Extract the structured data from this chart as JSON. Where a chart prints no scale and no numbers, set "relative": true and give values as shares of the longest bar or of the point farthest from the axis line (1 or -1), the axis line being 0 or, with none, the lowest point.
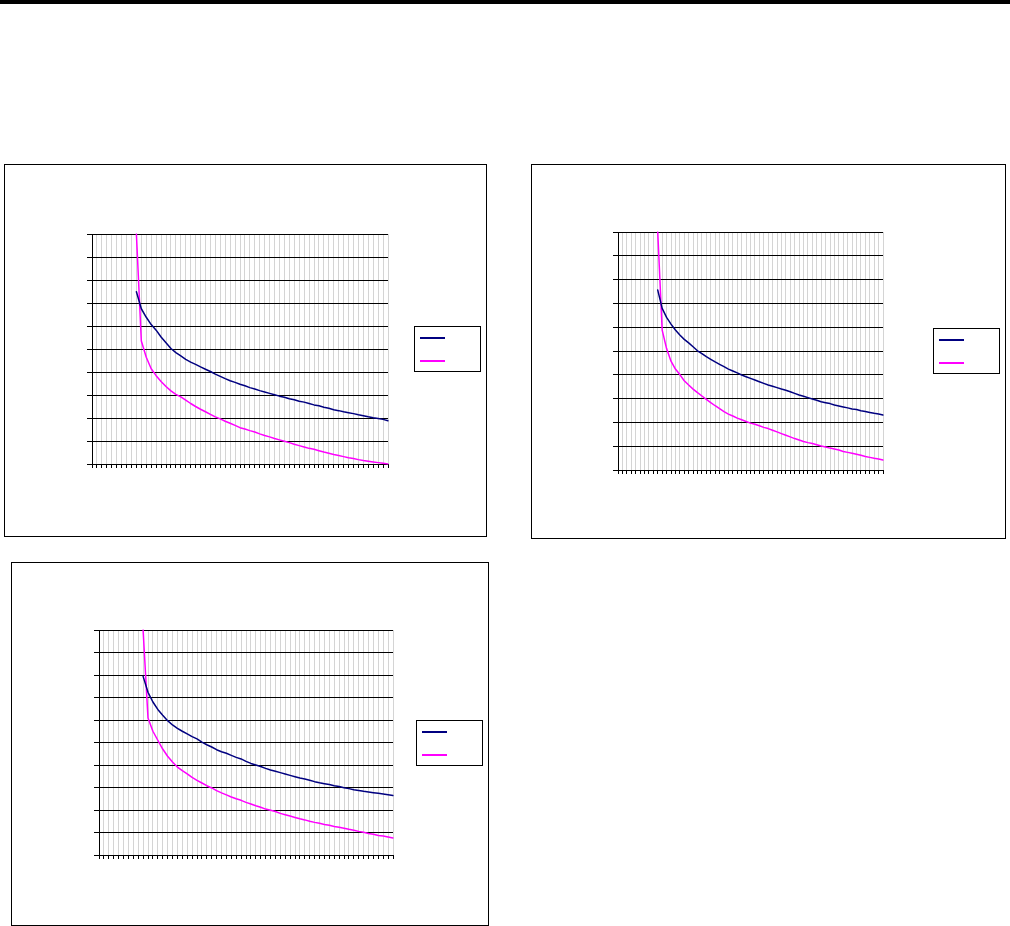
{
  "chart_data": [
    {
      "type": "line",
      "relative": true,
      "grid": true,
      "categories": [
        null,
        null,
        null,
        null,
        null,
        null,
        null,
        null,
        null,
        null,
        null,
        null,
        null,
        null,
        null,
        null,
        null,
        null,
        null,
        null,
        null,
        null,
        null,
        null,
        null,
        null,
        null,
        null,
        null,
        null,
        null,
        null,
        null,
        null,
        null,
        null,
        null,
        null,
        null,
        null,
        null,
        null,
        null,
        null,
        null,
        null,
        null,
        null,
        null,
        null,
        null,
        null,
        null,
        null,
        null,
        null,
        null,
        null,
        null,
        null,
        null
      ],
      "series": [
        {
          "color": "#000080",
          "values": [
            null,
            null,
            null,
            null,
            null,
            null,
            null,
            null,
            null,
            0.749,
            0.675,
            0.638,
            0.606,
            0.582,
            0.552,
            0.527,
            0.502,
            0.484,
            0.47,
            0.455,
            0.443,
            0.433,
            0.422,
            0.412,
            0.402,
            0.391,
            0.381,
            0.371,
            0.362,
            0.355,
            0.347,
            0.34,
            0.332,
            0.326,
            0.319,
            0.313,
            0.307,
            0.301,
            0.295,
            0.29,
            0.284,
            0.279,
            0.273,
            0.269,
            0.263,
            0.257,
            0.253,
            0.247,
            0.242,
            0.236,
            0.232,
            0.227,
            0.223,
            0.219,
            0.214,
            0.21,
            0.205,
            0.201,
            0.198,
            0.194,
            0.188
          ]
        },
        {
          "color": "#ff00ff",
          "values": [
            null,
            null,
            null,
            null,
            null,
            null,
            null,
            null,
            null,
            1,
            0.535,
            0.464,
            0.414,
            0.384,
            0.359,
            0.337,
            0.318,
            0.303,
            0.292,
            0.278,
            0.263,
            0.25,
            0.238,
            0.227,
            0.216,
            0.205,
            0.196,
            0.186,
            0.177,
            0.168,
            0.158,
            0.152,
            0.145,
            0.139,
            0.131,
            0.124,
            0.118,
            0.111,
            0.105,
            0.099,
            0.093,
            0.086,
            0.08,
            0.074,
            0.068,
            0.064,
            0.058,
            0.052,
            0.047,
            0.041,
            0.037,
            0.032,
            0.027,
            0.024,
            0.019,
            0.015,
            0.012,
            0.009,
            0.006,
            0.003,
            0
          ]
        }
      ]
    },
    {
      "type": "line",
      "relative": true,
      "grid": true,
      "categories": [
        null,
        null,
        null,
        null,
        null,
        null,
        null,
        null,
        null,
        null,
        null,
        null,
        null,
        null,
        null,
        null,
        null,
        null,
        null,
        null,
        null,
        null,
        null,
        null,
        null,
        null,
        null,
        null,
        null,
        null,
        null,
        null,
        null,
        null,
        null,
        null,
        null,
        null,
        null,
        null,
        null,
        null,
        null,
        null,
        null,
        null,
        null,
        null,
        null,
        null,
        null,
        null,
        null,
        null,
        null,
        null,
        null,
        null,
        null,
        null,
        null
      ],
      "series": [
        {
          "color": "#000080",
          "values": [
            null,
            null,
            null,
            null,
            null,
            null,
            null,
            null,
            null,
            0.756,
            0.679,
            0.641,
            0.613,
            0.588,
            0.567,
            0.549,
            0.534,
            0.518,
            0.501,
            0.489,
            0.476,
            0.465,
            0.454,
            0.444,
            0.434,
            0.424,
            0.416,
            0.408,
            0.399,
            0.392,
            0.385,
            0.378,
            0.371,
            0.364,
            0.357,
            0.352,
            0.346,
            0.34,
            0.335,
            0.329,
            0.322,
            0.315,
            0.31,
            0.304,
            0.298,
            0.293,
            0.287,
            0.283,
            0.279,
            0.273,
            0.269,
            0.265,
            0.261,
            0.256,
            0.254,
            0.249,
            0.246,
            0.242,
            0.238,
            0.235,
            0.231
          ]
        },
        {
          "color": "#ff00ff",
          "values": [
            null,
            null,
            null,
            null,
            null,
            null,
            null,
            null,
            null,
            1,
            0.588,
            0.51,
            0.457,
            0.424,
            0.401,
            0.375,
            0.357,
            0.34,
            0.325,
            0.311,
            0.297,
            0.283,
            0.27,
            0.258,
            0.245,
            0.235,
            0.227,
            0.218,
            0.211,
            0.204,
            0.197,
            0.192,
            0.186,
            0.179,
            0.174,
            0.167,
            0.16,
            0.153,
            0.146,
            0.139,
            0.132,
            0.126,
            0.12,
            0.115,
            0.111,
            0.106,
            0.101,
            0.097,
            0.092,
            0.088,
            0.084,
            0.078,
            0.074,
            0.07,
            0.066,
            0.062,
            0.057,
            0.053,
            0.049,
            0.046,
            0.042
          ]
        }
      ]
    },
    {
      "type": "line",
      "relative": true,
      "grid": true,
      "categories": [
        null,
        null,
        null,
        null,
        null,
        null,
        null,
        null,
        null,
        null,
        null,
        null,
        null,
        null,
        null,
        null,
        null,
        null,
        null,
        null,
        null,
        null,
        null,
        null,
        null,
        null,
        null,
        null,
        null,
        null,
        null,
        null,
        null,
        null,
        null,
        null,
        null,
        null,
        null,
        null,
        null,
        null,
        null,
        null,
        null,
        null,
        null,
        null,
        null,
        null,
        null,
        null,
        null,
        null,
        null,
        null,
        null,
        null,
        null,
        null,
        null
      ],
      "series": [
        {
          "color": "#000080",
          "values": [
            null,
            null,
            null,
            null,
            null,
            null,
            null,
            null,
            null,
            0.794,
            0.723,
            0.68,
            0.647,
            0.621,
            0.597,
            0.578,
            0.563,
            0.55,
            0.538,
            0.526,
            0.516,
            0.502,
            0.49,
            0.48,
            0.468,
            0.459,
            0.452,
            0.443,
            0.434,
            0.427,
            0.416,
            0.407,
            0.4,
            0.393,
            0.385,
            0.378,
            0.372,
            0.366,
            0.36,
            0.354,
            0.348,
            0.342,
            0.338,
            0.332,
            0.326,
            0.321,
            0.317,
            0.313,
            0.308,
            0.304,
            0.299,
            0.295,
            0.29,
            0.287,
            0.283,
            0.28,
            0.277,
            0.274,
            0.271,
            0.268,
            0.264
          ]
        },
        {
          "color": "#ff00ff",
          "values": [
            null,
            null,
            null,
            null,
            null,
            null,
            null,
            null,
            null,
            1,
            0.609,
            0.55,
            0.51,
            0.471,
            0.439,
            0.413,
            0.391,
            0.375,
            0.361,
            0.345,
            0.332,
            0.32,
            0.308,
            0.298,
            0.286,
            0.276,
            0.267,
            0.258,
            0.25,
            0.243,
            0.234,
            0.227,
            0.219,
            0.212,
            0.204,
            0.199,
            0.193,
            0.185,
            0.179,
            0.173,
            0.167,
            0.161,
            0.156,
            0.15,
            0.145,
            0.141,
            0.136,
            0.132,
            0.127,
            0.123,
            0.119,
            0.114,
            0.11,
            0.105,
            0.101,
            0.096,
            0.092,
            0.087,
            0.084,
            0.08,
            0.076
          ]
        }
      ]
    }
  ]
}
